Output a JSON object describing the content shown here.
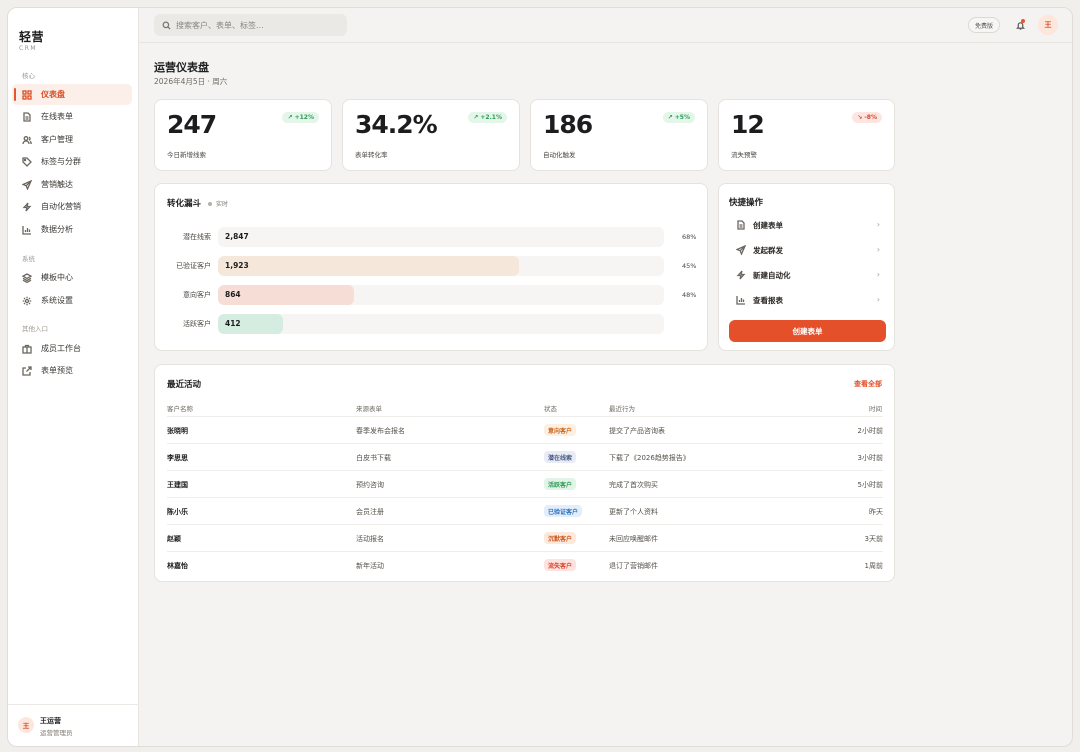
{
  "app": {
    "brand": "轻营",
    "brand_sub": "CRM"
  },
  "sidebar": {
    "sections": [
      {
        "title": "核心"
      },
      {
        "title": "系统"
      },
      {
        "title": "其他入口"
      }
    ],
    "items": [
      {
        "label": "仪表盘",
        "icon": "dashboard-icon"
      },
      {
        "label": "在线表单",
        "icon": "form-icon"
      },
      {
        "label": "客户管理",
        "icon": "users-icon"
      },
      {
        "label": "标签与分群",
        "icon": "tag-icon"
      },
      {
        "label": "营销触达",
        "icon": "send-icon"
      },
      {
        "label": "自动化营销",
        "icon": "lightning-icon"
      },
      {
        "label": "数据分析",
        "icon": "chart-icon"
      },
      {
        "label": "模板中心",
        "icon": "layers-icon"
      },
      {
        "label": "系统设置",
        "icon": "gear-icon"
      },
      {
        "label": "成员工作台",
        "icon": "briefcase-icon"
      },
      {
        "label": "表单预览",
        "icon": "external-link-icon"
      }
    ],
    "user": {
      "avatar": "王",
      "name": "王运营",
      "role": "运营管理员"
    }
  },
  "topbar": {
    "search_placeholder": "搜索客户、表单、标签...",
    "plan": "免费版",
    "avatar": "王"
  },
  "header": {
    "title": "运营仪表盘",
    "date": "2026年4月5日 · 周六"
  },
  "kpis": [
    {
      "value": "247",
      "label": "今日新增线索",
      "trend": "↗ +12%",
      "dir": "up"
    },
    {
      "value": "34.2%",
      "label": "表单转化率",
      "trend": "↗ +2.1%",
      "dir": "up"
    },
    {
      "value": "186",
      "label": "自动化触发",
      "trend": "↗ +5%",
      "dir": "up"
    },
    {
      "value": "12",
      "label": "流失预警",
      "trend": "↘ -8%",
      "dir": "down"
    }
  ],
  "funnel": {
    "title": "转化漏斗",
    "live": "实时",
    "stages": [
      {
        "label": "潜在线索",
        "value": "2,847",
        "pct": "68%",
        "fill": 1.0,
        "color": "#f6f5f3"
      },
      {
        "label": "已验证客户",
        "value": "1,923",
        "pct": "45%",
        "fill": 0.675,
        "color": "#f5e7d9"
      },
      {
        "label": "意向客户",
        "value": "864",
        "pct": "48%",
        "fill": 0.304,
        "color": "#f6ddd6"
      },
      {
        "label": "活跃客户",
        "value": "412",
        "pct": "",
        "fill": 0.145,
        "color": "#d5ece0"
      }
    ]
  },
  "quick": {
    "title": "快捷操作",
    "items": [
      {
        "label": "创建表单",
        "icon": "document-icon"
      },
      {
        "label": "发起群发",
        "icon": "send-icon"
      },
      {
        "label": "新建自动化",
        "icon": "lightning-icon"
      },
      {
        "label": "查看报表",
        "icon": "chart-icon"
      }
    ],
    "primary": "创建表单"
  },
  "activity": {
    "title": "最近活动",
    "view_all": "查看全部",
    "columns": [
      "客户名称",
      "来源表单",
      "状态",
      "最近行为",
      "时间"
    ],
    "rows": [
      {
        "name": "张晓明",
        "source": "春季发布会报名",
        "status": "意向客户",
        "status_color": "#c9651e",
        "status_bg": "#fdf0e2",
        "action": "提交了产品咨询表",
        "time": "2小时前"
      },
      {
        "name": "李思思",
        "source": "白皮书下载",
        "status": "潜在线索",
        "status_color": "#4b5a86",
        "status_bg": "#e9ecf5",
        "action": "下载了《2026趋势报告》",
        "time": "3小时前"
      },
      {
        "name": "王建国",
        "source": "预约咨询",
        "status": "活跃客户",
        "status_color": "#2d9a56",
        "status_bg": "#e2f4e8",
        "action": "完成了首次购买",
        "time": "5小时前"
      },
      {
        "name": "陈小乐",
        "source": "会员注册",
        "status": "已验证客户",
        "status_color": "#2f74c0",
        "status_bg": "#e3eefa",
        "action": "更新了个人资料",
        "time": "昨天"
      },
      {
        "name": "赵颖",
        "source": "活动报名",
        "status": "沉默客户",
        "status_color": "#c95a1e",
        "status_bg": "#fde8dc",
        "action": "未回应唤醒邮件",
        "time": "3天前"
      },
      {
        "name": "林嘉怡",
        "source": "新年活动",
        "status": "流失客户",
        "status_color": "#d8452b",
        "status_bg": "#fde3e0",
        "action": "退订了营销邮件",
        "time": "1周前"
      }
    ]
  }
}
